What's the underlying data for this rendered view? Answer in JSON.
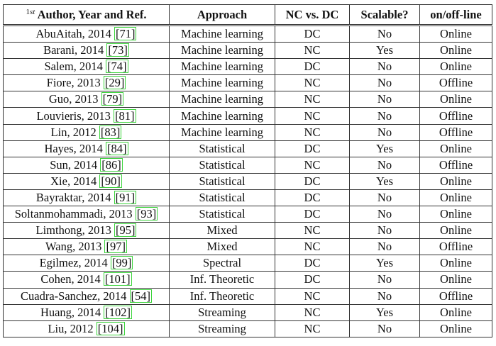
{
  "header": {
    "author_sup_num": "1",
    "author_sup": "st",
    "author": "Author, Year and Ref.",
    "approach": "Approach",
    "nc_dc": "NC vs. DC",
    "scalable": "Scalable?",
    "online": "on/off-line"
  },
  "rows": [
    {
      "author": "AbuAitah, 2014 ",
      "ref": "[71]",
      "approach": "Machine learning",
      "nc_dc": "DC",
      "scalable": "No",
      "online": "Online"
    },
    {
      "author": "Barani, 2014 ",
      "ref": "[73]",
      "approach": "Machine learning",
      "nc_dc": "NC",
      "scalable": "Yes",
      "online": "Online"
    },
    {
      "author": "Salem, 2014 ",
      "ref": "[74]",
      "approach": "Machine learning",
      "nc_dc": "DC",
      "scalable": "No",
      "online": "Online"
    },
    {
      "author": "Fiore, 2013 ",
      "ref": "[29]",
      "approach": "Machine learning",
      "nc_dc": "NC",
      "scalable": "No",
      "online": "Offline"
    },
    {
      "author": "Guo, 2013 ",
      "ref": "[79]",
      "approach": "Machine learning",
      "nc_dc": "NC",
      "scalable": "No",
      "online": "Online"
    },
    {
      "author": "Louvieris, 2013 ",
      "ref": "[81]",
      "approach": "Machine learning",
      "nc_dc": "NC",
      "scalable": "No",
      "online": "Offline"
    },
    {
      "author": "Lin, 2012 ",
      "ref": "[83]",
      "approach": "Machine learning",
      "nc_dc": "NC",
      "scalable": "No",
      "online": "Offline"
    },
    {
      "author": "Hayes, 2014 ",
      "ref": "[84]",
      "approach": "Statistical",
      "nc_dc": "DC",
      "scalable": "Yes",
      "online": "Online"
    },
    {
      "author": "Sun, 2014 ",
      "ref": "[86]",
      "approach": "Statistical",
      "nc_dc": "NC",
      "scalable": "No",
      "online": "Offline"
    },
    {
      "author": "Xie, 2014 ",
      "ref": "[90]",
      "approach": "Statistical",
      "nc_dc": "DC",
      "scalable": "Yes",
      "online": "Online"
    },
    {
      "author": "Bayraktar, 2014 ",
      "ref": "[91]",
      "approach": "Statistical",
      "nc_dc": "DC",
      "scalable": "No",
      "online": "Online"
    },
    {
      "author": "Soltanmohammadi, 2013 ",
      "ref": "[93]",
      "approach": "Statistical",
      "nc_dc": "DC",
      "scalable": "No",
      "online": "Online"
    },
    {
      "author": "Limthong, 2013 ",
      "ref": "[95]",
      "approach": "Mixed",
      "nc_dc": "NC",
      "scalable": "No",
      "online": "Online"
    },
    {
      "author": "Wang, 2013 ",
      "ref": "[97]",
      "approach": "Mixed",
      "nc_dc": "NC",
      "scalable": "No",
      "online": "Offline"
    },
    {
      "author": "Egilmez, 2014 ",
      "ref": "[99]",
      "approach": "Spectral",
      "nc_dc": "DC",
      "scalable": "Yes",
      "online": "Online"
    },
    {
      "author": "Cohen, 2014 ",
      "ref": "[101]",
      "approach": "Inf. Theoretic",
      "nc_dc": "DC",
      "scalable": "No",
      "online": "Online"
    },
    {
      "author": "Cuadra-Sanchez, 2014 ",
      "ref": "[54]",
      "approach": "Inf. Theoretic",
      "nc_dc": "NC",
      "scalable": "No",
      "online": "Offline"
    },
    {
      "author": "Huang, 2014 ",
      "ref": "[102]",
      "approach": "Streaming",
      "nc_dc": "NC",
      "scalable": "Yes",
      "online": "Online"
    },
    {
      "author": "Liu, 2012 ",
      "ref": "[104]",
      "approach": "Streaming",
      "nc_dc": "NC",
      "scalable": "No",
      "online": "Online"
    }
  ],
  "colors": {
    "ref_box": "#3dd43d",
    "rule": "#333333"
  }
}
